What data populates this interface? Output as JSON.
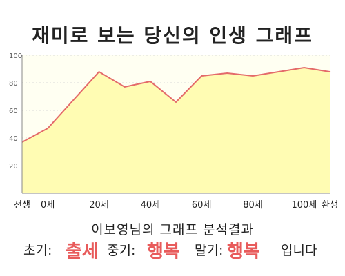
{
  "chart_data": {
    "type": "area",
    "title": "재미로 보는 당신의 인생 그래프",
    "x": [
      -10,
      0,
      20,
      30,
      40,
      50,
      60,
      70,
      80,
      90,
      100,
      110
    ],
    "y": [
      37,
      47,
      88,
      77,
      81,
      66,
      85,
      87,
      85,
      88,
      91,
      88
    ],
    "xlim": [
      -10,
      110
    ],
    "ylim": [
      0,
      100
    ],
    "yticks": [
      20,
      40,
      60,
      80,
      100
    ],
    "xticks": [
      {
        "value": -10,
        "label": "전생"
      },
      {
        "value": 0,
        "label": "0세"
      },
      {
        "value": 20,
        "label": "20세"
      },
      {
        "value": 40,
        "label": "40세"
      },
      {
        "value": 60,
        "label": "60세"
      },
      {
        "value": 80,
        "label": "80세"
      },
      {
        "value": 100,
        "label": "100세"
      },
      {
        "value": 110,
        "label": "환생"
      }
    ],
    "grid": true,
    "fill_color": "#fffcb3",
    "line_color": "#e46a6a"
  },
  "result": {
    "title": "이보영님의 그래프 분석결과",
    "early_label": "초기:",
    "early_value": "출세",
    "mid_label": "중기:",
    "mid_value": "행복",
    "late_label": "말기:",
    "late_value": "행복",
    "suffix": "입니다"
  }
}
